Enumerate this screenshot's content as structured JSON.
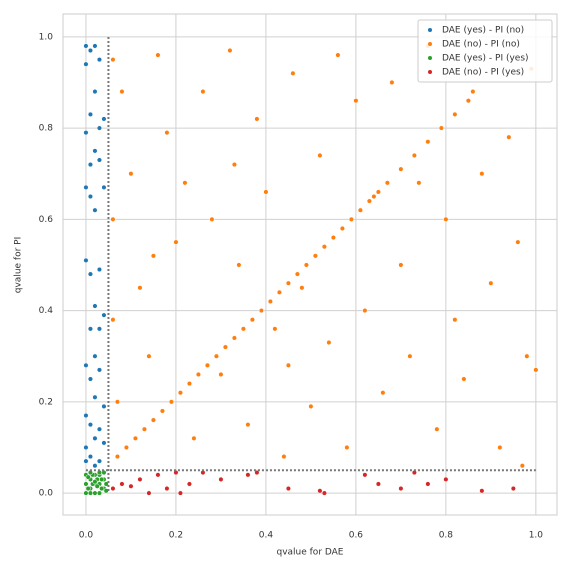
{
  "chart_data": {
    "type": "scatter",
    "xlabel": "qvalue for DAE",
    "ylabel": "qvalue for PI",
    "xlim": [
      -0.051,
      1.047
    ],
    "ylim": [
      -0.048,
      1.05
    ],
    "xticks": [
      {
        "value": 0,
        "label": "0.0"
      },
      {
        "value": 0.2,
        "label": "0.2"
      },
      {
        "value": 0.4,
        "label": "0.4"
      },
      {
        "value": 0.6,
        "label": "0.6"
      },
      {
        "value": 0.8,
        "label": "0.8"
      },
      {
        "value": 1,
        "label": "1.0"
      }
    ],
    "yticks": [
      {
        "value": 0,
        "label": "0.0"
      },
      {
        "value": 0.2,
        "label": "0.2"
      },
      {
        "value": 0.4,
        "label": "0.4"
      },
      {
        "value": 0.6,
        "label": "0.6"
      },
      {
        "value": 0.8,
        "label": "0.8"
      },
      {
        "value": 1,
        "label": "1.0"
      }
    ],
    "grid": true,
    "legend": "upper right",
    "vlines": [
      0.05
    ],
    "hlines": [
      0.05
    ],
    "series": [
      {
        "name": "DAE (yes) - PI (no)",
        "color": "#1f77b4",
        "x": [
          0.0,
          0.01,
          0.02,
          0.03,
          0.0,
          0.02,
          0.01,
          0.03,
          0.04,
          0.0,
          0.02,
          0.01,
          0.03,
          0.0,
          0.01,
          0.04,
          0.02,
          0.0,
          0.01,
          0.03,
          0.02,
          0.01,
          0.03,
          0.04,
          0.02,
          0.0,
          0.03,
          0.01,
          0.02,
          0.04,
          0.0,
          0.01,
          0.03,
          0.02,
          0.0,
          0.04,
          0.01,
          0.03,
          0.02,
          0.0
        ],
        "y": [
          0.98,
          0.97,
          0.98,
          0.95,
          0.94,
          0.88,
          0.83,
          0.8,
          0.82,
          0.79,
          0.75,
          0.72,
          0.73,
          0.67,
          0.65,
          0.67,
          0.62,
          0.51,
          0.48,
          0.49,
          0.41,
          0.36,
          0.36,
          0.39,
          0.3,
          0.28,
          0.27,
          0.25,
          0.21,
          0.19,
          0.17,
          0.15,
          0.14,
          0.12,
          0.1,
          0.11,
          0.08,
          0.07,
          0.06,
          0.07
        ]
      },
      {
        "name": "DAE (no) - PI (no)",
        "color": "#ff7f0e",
        "x": [
          0.07,
          0.09,
          0.11,
          0.13,
          0.15,
          0.17,
          0.19,
          0.21,
          0.23,
          0.25,
          0.27,
          0.29,
          0.31,
          0.33,
          0.35,
          0.37,
          0.39,
          0.41,
          0.43,
          0.45,
          0.47,
          0.49,
          0.51,
          0.53,
          0.55,
          0.57,
          0.59,
          0.61,
          0.63,
          0.65,
          0.67,
          0.7,
          0.73,
          0.76,
          0.79,
          0.82,
          0.85,
          0.06,
          0.06,
          0.06,
          0.07,
          0.08,
          0.1,
          0.12,
          0.14,
          0.16,
          0.18,
          0.2,
          0.22,
          0.24,
          0.26,
          0.28,
          0.3,
          0.32,
          0.34,
          0.36,
          0.38,
          0.4,
          0.42,
          0.44,
          0.46,
          0.48,
          0.5,
          0.52,
          0.54,
          0.56,
          0.58,
          0.6,
          0.62,
          0.64,
          0.66,
          0.68,
          0.7,
          0.72,
          0.74,
          0.76,
          0.78,
          0.8,
          0.82,
          0.84,
          0.86,
          0.88,
          0.9,
          0.92,
          0.94,
          0.96,
          0.98,
          0.99,
          1.0,
          0.97,
          0.45,
          0.33,
          0.15
        ],
        "y": [
          0.08,
          0.1,
          0.12,
          0.14,
          0.16,
          0.18,
          0.2,
          0.22,
          0.24,
          0.26,
          0.28,
          0.3,
          0.32,
          0.34,
          0.36,
          0.38,
          0.4,
          0.42,
          0.44,
          0.46,
          0.48,
          0.5,
          0.52,
          0.54,
          0.56,
          0.58,
          0.6,
          0.62,
          0.64,
          0.66,
          0.68,
          0.71,
          0.74,
          0.77,
          0.8,
          0.83,
          0.86,
          0.95,
          0.6,
          0.38,
          0.2,
          0.88,
          0.7,
          0.45,
          0.3,
          0.96,
          0.79,
          0.55,
          0.68,
          0.12,
          0.88,
          0.6,
          0.26,
          0.97,
          0.5,
          0.15,
          0.82,
          0.66,
          0.36,
          0.08,
          0.92,
          0.45,
          0.19,
          0.74,
          0.33,
          0.96,
          0.1,
          0.86,
          0.4,
          0.65,
          0.22,
          0.9,
          0.5,
          0.3,
          0.68,
          0.98,
          0.14,
          0.6,
          0.38,
          0.25,
          0.88,
          0.7,
          0.46,
          0.1,
          0.78,
          0.55,
          0.3,
          0.93,
          0.27,
          0.06,
          0.28,
          0.72,
          0.52
        ]
      },
      {
        "name": "DAE (yes) - PI (yes)",
        "color": "#2ca02c",
        "x": [
          0.0,
          0.01,
          0.02,
          0.03,
          0.04,
          0.0,
          0.01,
          0.02,
          0.03,
          0.04,
          0.0,
          0.01,
          0.02,
          0.03,
          0.04,
          0.005,
          0.015,
          0.025,
          0.035,
          0.045,
          0.005,
          0.015,
          0.025,
          0.035,
          0.045,
          0.01,
          0.02,
          0.03
        ],
        "y": [
          0.0,
          0.01,
          0.0,
          0.02,
          0.01,
          0.02,
          0.03,
          0.04,
          0.0,
          0.03,
          0.04,
          0.0,
          0.02,
          0.04,
          0.045,
          0.01,
          0.02,
          0.03,
          0.01,
          0.02,
          0.035,
          0.04,
          0.015,
          0.03,
          0.005,
          0.045,
          0.025,
          0.045
        ]
      },
      {
        "name": "DAE (no) - PI (yes)",
        "color": "#d62728",
        "x": [
          0.06,
          0.08,
          0.1,
          0.12,
          0.14,
          0.16,
          0.18,
          0.2,
          0.21,
          0.23,
          0.26,
          0.3,
          0.36,
          0.45,
          0.52,
          0.53,
          0.62,
          0.7,
          0.73,
          0.76,
          0.8,
          0.88,
          0.95,
          0.38,
          0.65
        ],
        "y": [
          0.01,
          0.02,
          0.015,
          0.03,
          0.0,
          0.04,
          0.01,
          0.045,
          0.0,
          0.02,
          0.045,
          0.03,
          0.04,
          0.01,
          0.005,
          0.0,
          0.04,
          0.01,
          0.045,
          0.02,
          0.03,
          0.005,
          0.01,
          0.045,
          0.02
        ]
      }
    ]
  }
}
